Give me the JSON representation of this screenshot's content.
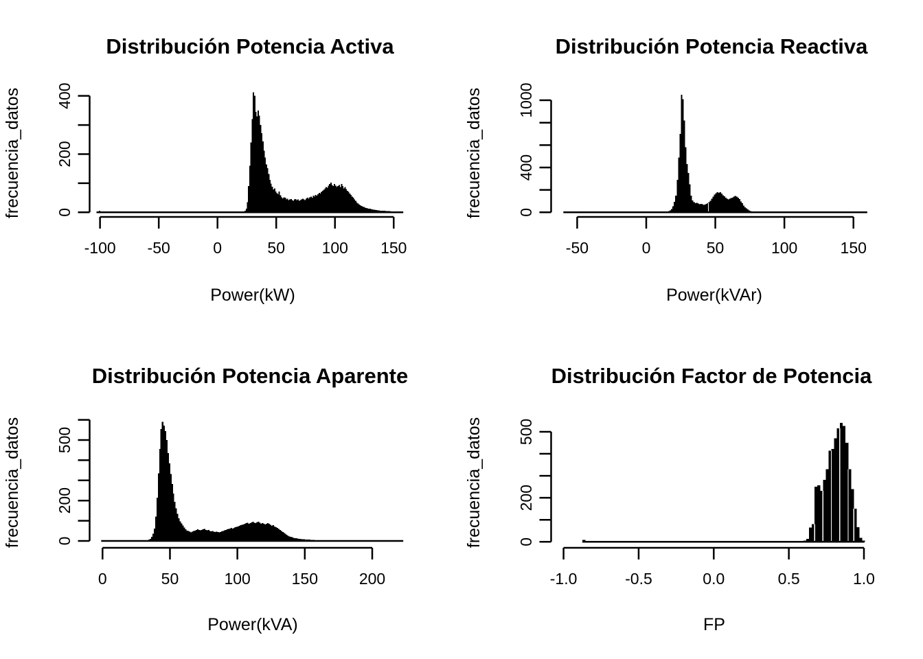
{
  "figure": {
    "background_color": "#ffffff",
    "ink_color": "#000000",
    "layout": "2x2 grid of base-R histograms"
  },
  "chart_data": [
    {
      "type": "bar",
      "subtype": "histogram",
      "title": "Distribución Potencia Activa",
      "xlabel": "Power(kW)",
      "ylabel": "frecuencia_datos",
      "x_ticks": {
        "values": [
          -100,
          -50,
          0,
          50,
          100,
          150
        ],
        "labels": [
          "-100",
          "-50",
          "0",
          "50",
          "100",
          "150"
        ]
      },
      "y_ticks": {
        "values": [
          0,
          100,
          200,
          300,
          400
        ],
        "labels": [
          "0",
          "",
          "200",
          "",
          "400"
        ]
      },
      "xlim": [
        -103,
        158
      ],
      "ylim": [
        0,
        412
      ],
      "baseline_extent": [
        -103,
        158
      ],
      "bins": {
        "start": 22,
        "width": 1,
        "heights": [
          2,
          6,
          12,
          35,
          90,
          160,
          240,
          320,
          412,
          400,
          345,
          330,
          350,
          332,
          300,
          272,
          243,
          212,
          188,
          165,
          152,
          132,
          112,
          98,
          88,
          78,
          82,
          72,
          66,
          62,
          72,
          58,
          52,
          48,
          52,
          50,
          44,
          47,
          42,
          44,
          46,
          42,
          40,
          44,
          46,
          42,
          44,
          40,
          42,
          44,
          47,
          44,
          42,
          47,
          50,
          47,
          52,
          54,
          50,
          57,
          54,
          60,
          57,
          62,
          67,
          64,
          70,
          74,
          77,
          82,
          87,
          84,
          92,
          97,
          102,
          94,
          90,
          97,
          92,
          87,
          90,
          94,
          87,
          97,
          90,
          82,
          87,
          80,
          74,
          70,
          64,
          60,
          54,
          50,
          44,
          40,
          34,
          30,
          27,
          24,
          22,
          20,
          18,
          16,
          15,
          14,
          13,
          12,
          11,
          10,
          9,
          9,
          8,
          8,
          7,
          7,
          6,
          6,
          5,
          5,
          5,
          4,
          4,
          4,
          4,
          3,
          3,
          3,
          3,
          3,
          2,
          2,
          2,
          2,
          2,
          2
        ]
      },
      "outlier_bins": [
        {
          "x": -101,
          "width": 1,
          "height": 6
        }
      ],
      "separators": []
    },
    {
      "type": "bar",
      "subtype": "histogram",
      "title": "Distribución Potencia Reactiva",
      "xlabel": "Power(kVAr)",
      "ylabel": "frecuencia_datos",
      "x_ticks": {
        "values": [
          -50,
          0,
          50,
          100,
          150
        ],
        "labels": [
          "-50",
          "0",
          "50",
          "100",
          "150"
        ]
      },
      "y_ticks": {
        "values": [
          0,
          200,
          400,
          600,
          800,
          1000
        ],
        "labels": [
          "0",
          "",
          "400",
          "",
          "",
          "1000"
        ]
      },
      "xlim": [
        -60,
        160
      ],
      "ylim": [
        0,
        1050
      ],
      "baseline_extent": [
        -60,
        160
      ],
      "bins": {
        "start": 12,
        "width": 1,
        "heights": [
          2,
          3,
          5,
          8,
          12,
          18,
          30,
          55,
          95,
          150,
          290,
          490,
          700,
          1050,
          1010,
          820,
          580,
          430,
          350,
          250,
          150,
          105,
          92,
          82,
          86,
          78,
          72,
          76,
          72,
          67,
          70,
          74,
          80,
          90,
          102,
          120,
          140,
          158,
          170,
          180,
          174,
          178,
          166,
          152,
          142,
          132,
          122,
          116,
          120,
          126,
          132,
          140,
          146,
          140,
          130,
          118,
          98,
          80,
          60,
          46,
          35,
          26,
          18,
          12,
          8,
          5,
          3,
          2
        ]
      },
      "outlier_bins": [
        {
          "x": -59.5,
          "width": 1,
          "height": 6
        }
      ],
      "separators": [
        44.5
      ]
    },
    {
      "type": "bar",
      "subtype": "histogram",
      "title": "Distribución Potencia Aparente",
      "xlabel": "Power(kVA)",
      "ylabel": "frecuencia_datos",
      "x_ticks": {
        "values": [
          0,
          50,
          100,
          150,
          200
        ],
        "labels": [
          "0",
          "50",
          "100",
          "150",
          "200"
        ]
      },
      "y_ticks": {
        "values": [
          0,
          100,
          200,
          300,
          400,
          500,
          600
        ],
        "labels": [
          "0",
          "",
          "200",
          "",
          "",
          "500",
          ""
        ]
      },
      "xlim": [
        -1,
        223
      ],
      "ylim": [
        0,
        590
      ],
      "baseline_extent": [
        -1,
        223
      ],
      "bins": {
        "start": 33,
        "width": 1,
        "heights": [
          3,
          6,
          10,
          20,
          36,
          62,
          120,
          215,
          335,
          455,
          555,
          590,
          572,
          545,
          500,
          436,
          385,
          332,
          283,
          235,
          194,
          162,
          134,
          112,
          97,
          86,
          76,
          66,
          57,
          51,
          49,
          46,
          43,
          46,
          49,
          51,
          55,
          58,
          55,
          52,
          55,
          58,
          60,
          55,
          52,
          55,
          50,
          48,
          50,
          46,
          44,
          46,
          44,
          42,
          45,
          48,
          50,
          52,
          55,
          58,
          60,
          62,
          65,
          62,
          65,
          68,
          70,
          72,
          75,
          78,
          80,
          82,
          85,
          88,
          90,
          85,
          88,
          92,
          95,
          90,
          88,
          92,
          95,
          90,
          85,
          88,
          85,
          82,
          85,
          88,
          85,
          80,
          75,
          78,
          72,
          68,
          65,
          60,
          55,
          50,
          45,
          40,
          35,
          30,
          26,
          22,
          20,
          18,
          16,
          14,
          13,
          12,
          11,
          10,
          9,
          8,
          8,
          7,
          7,
          6,
          6,
          5,
          5,
          5,
          4,
          4,
          4,
          4,
          3,
          3,
          3,
          3,
          3,
          2,
          2,
          2,
          2,
          2,
          2,
          2,
          1,
          1,
          1
        ]
      },
      "outlier_bins": [],
      "separators": []
    },
    {
      "type": "bar",
      "subtype": "histogram",
      "title": "Distribución Factor de Potencia",
      "xlabel": "FP",
      "ylabel": "frecuencia_datos",
      "x_ticks": {
        "values": [
          -1.0,
          -0.5,
          0.0,
          0.5,
          1.0
        ],
        "labels": [
          "-1.0",
          "-0.5",
          "0.0",
          "0.5",
          "1.0"
        ]
      },
      "y_ticks": {
        "values": [
          0,
          100,
          200,
          300,
          400,
          500
        ],
        "labels": [
          "0",
          "",
          "200",
          "",
          "",
          "500"
        ]
      },
      "xlim": [
        -0.875,
        1.003
      ],
      "ylim": [
        0,
        540
      ],
      "baseline_extent": [
        -0.875,
        1.003
      ],
      "bins": {
        "start": 0.597,
        "width": 0.0186,
        "heights": [
          5,
          14,
          65,
          80,
          250,
          256,
          232,
          282,
          330,
          415,
          422,
          470,
          516,
          540,
          526,
          450,
          330,
          240,
          150,
          66,
          18,
          6
        ]
      },
      "outlier_bins": [
        {
          "x": -0.875,
          "width": 0.0186,
          "height": 8
        }
      ],
      "separators": [
        0.663,
        0.719,
        0.775,
        0.831,
        0.886,
        0.941
      ]
    }
  ]
}
